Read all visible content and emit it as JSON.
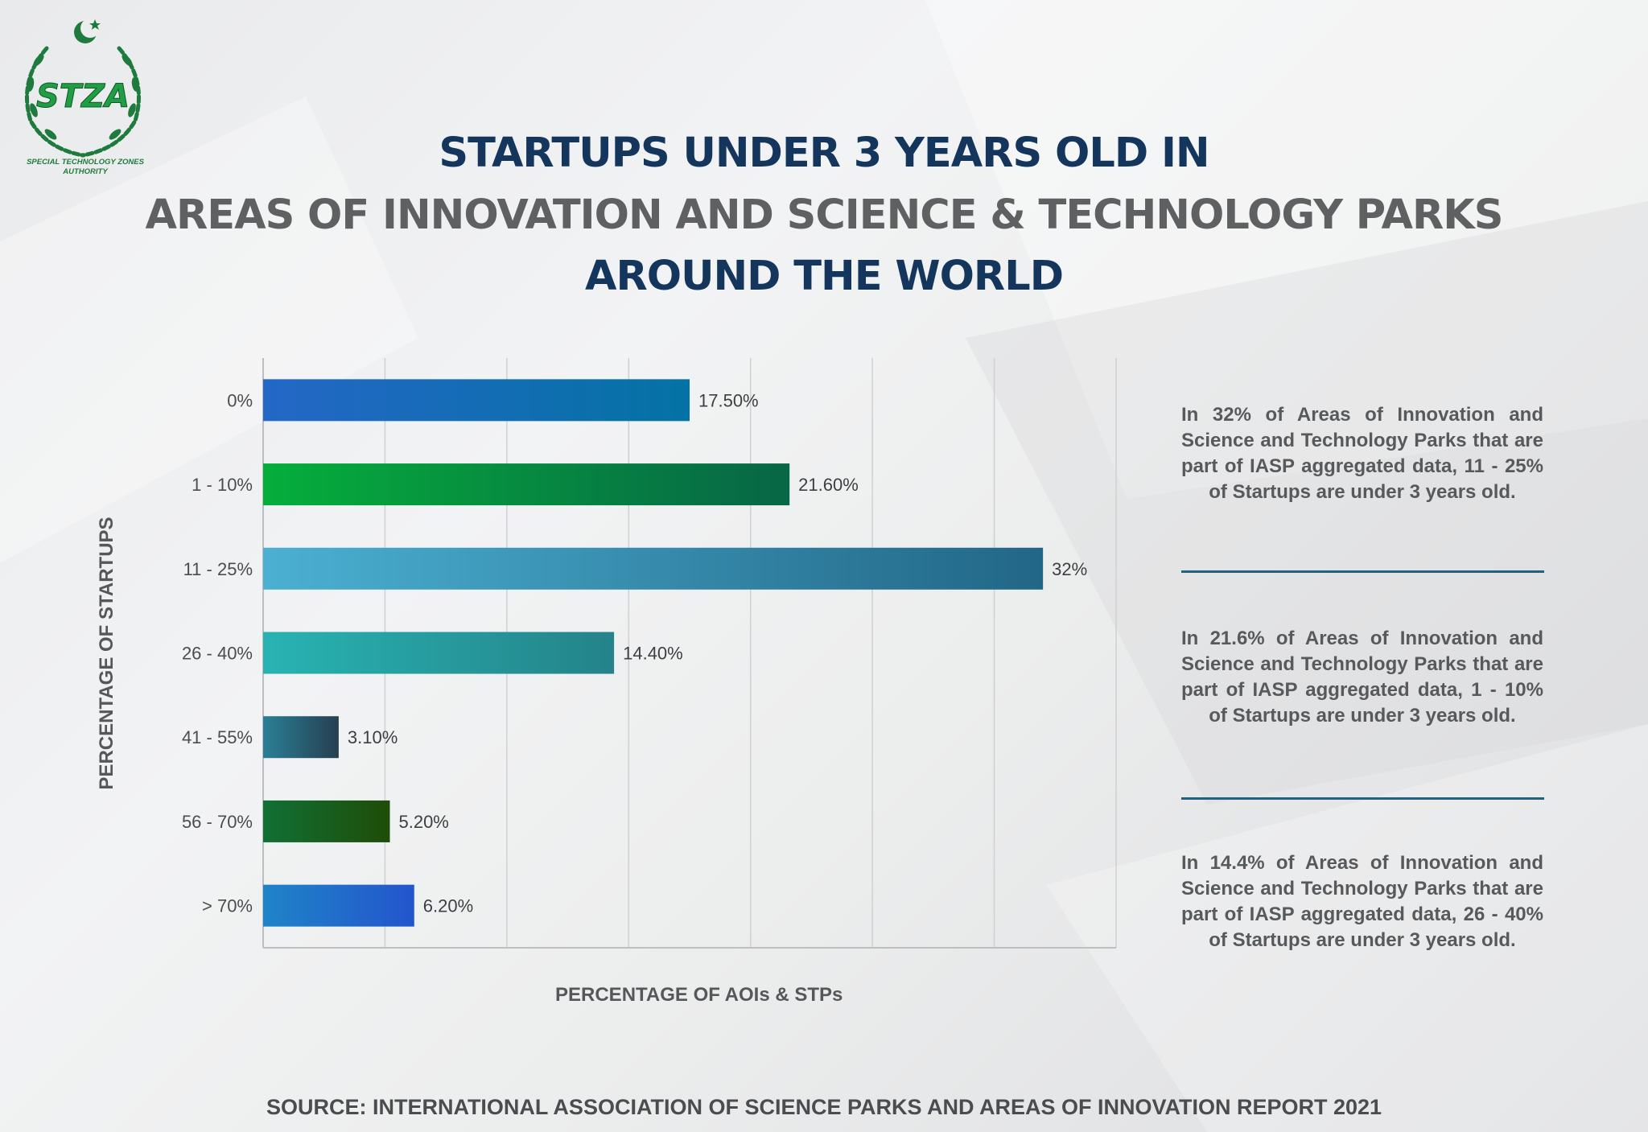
{
  "logo": {
    "text": "STZA",
    "caption": "SPECIAL TECHNOLOGY ZONES AUTHORITY"
  },
  "title": {
    "line1": "STARTUPS UNDER 3 YEARS OLD IN",
    "line2": "AREAS OF INNOVATION AND SCIENCE & TECHNOLOGY PARKS",
    "line3": "AROUND THE WORLD"
  },
  "colors": {
    "navy": "#14365c",
    "gray": "#5e6062",
    "divider": "#23627f",
    "logo_green": "#1f7a3d"
  },
  "chart_data": {
    "type": "bar",
    "orientation": "horizontal",
    "title": "STARTUPS UNDER 3 YEARS OLD IN AREAS OF INNOVATION AND SCIENCE & TECHNOLOGY PARKS AROUND THE WORLD",
    "xlabel": "PERCENTAGE OF AOIs & STPs",
    "ylabel": "PERCENTAGE OF STARTUPS",
    "xlim": [
      0,
      35
    ],
    "grid": true,
    "categories": [
      "0%",
      "1 - 10%",
      "11 - 25%",
      "26 - 40%",
      "41 - 55%",
      "56 - 70%",
      "> 70%"
    ],
    "values": [
      17.5,
      21.6,
      32,
      14.4,
      3.1,
      5.2,
      6.2
    ],
    "data_labels": [
      "17.50%",
      "21.60%",
      "32%",
      "14.40%",
      "3.10%",
      "5.20%",
      "6.20%"
    ],
    "bar_gradients": [
      [
        "#2467c6",
        "#0472a4"
      ],
      [
        "#05ae3b",
        "#076646"
      ],
      [
        "#4bb0d2",
        "#226687"
      ],
      [
        "#28b3b2",
        "#24838a"
      ],
      [
        "#2a7f96",
        "#263f50"
      ],
      [
        "#117035",
        "#1e4d08"
      ],
      [
        "#1f84c8",
        "#2355cc"
      ]
    ]
  },
  "notes": [
    "In 32% of Areas of Innovation and Science and Technology Parks that are part of IASP aggregated data, 11 - 25% of Startups are under 3 years old.",
    "In 21.6% of Areas of Innovation and Science and Technology Parks that are part of IASP aggregated data, 1 - 10% of Startups are under 3 years old.",
    "In 14.4% of Areas of Innovation and Science and Technology Parks that are part of IASP aggregated data, 26 - 40% of Startups are under 3 years old."
  ],
  "source": "SOURCE: INTERNATIONAL ASSOCIATION OF SCIENCE PARKS AND AREAS OF INNOVATION REPORT 2021"
}
